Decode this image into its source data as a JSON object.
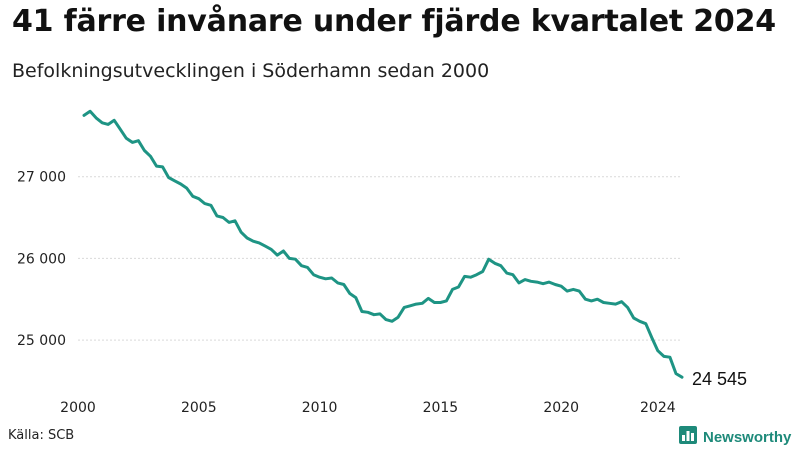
{
  "header": {
    "title": "41 färre invånare under fjärde kvartalet 2024",
    "subtitle": "Befolkningsutvecklingen i Söderhamn sedan 2000"
  },
  "footer": {
    "source": "Källa: SCB",
    "brand": "Newsworthy",
    "brand_icon": "bar-chart-logo-icon"
  },
  "colors": {
    "line": "#1e9484",
    "brand": "#1e8a7a",
    "grid": "#d9d9d9"
  },
  "chart_data": {
    "type": "line",
    "title": "41 färre invånare under fjärde kvartalet 2024",
    "subtitle": "Befolkningsutvecklingen i Söderhamn sedan 2000",
    "xlabel": "",
    "ylabel": "",
    "xlim": [
      2000.0,
      2025.0
    ],
    "ylim": [
      24450,
      28000
    ],
    "x_ticks": [
      2000,
      2005,
      2010,
      2015,
      2020,
      2024
    ],
    "x_tick_labels": [
      "2000",
      "2005",
      "2010",
      "2015",
      "2020",
      "2024"
    ],
    "y_ticks": [
      25000,
      26000,
      27000
    ],
    "y_tick_labels": [
      "25 000",
      "26 000",
      "27 000"
    ],
    "grid": "horizontal",
    "end_label": "24 545",
    "series": [
      {
        "x": [
          2000.25,
          2000.5,
          2000.75,
          2001.0,
          2001.25,
          2001.5,
          2001.75,
          2002.0,
          2002.25,
          2002.5,
          2002.75,
          2003.0,
          2003.25,
          2003.5,
          2003.75,
          2004.0,
          2004.25,
          2004.5,
          2004.75,
          2005.0,
          2005.25,
          2005.5,
          2005.75,
          2006.0,
          2006.25,
          2006.5,
          2006.75,
          2007.0,
          2007.25,
          2007.5,
          2007.75,
          2008.0,
          2008.25,
          2008.5,
          2008.75,
          2009.0,
          2009.25,
          2009.5,
          2009.75,
          2010.0,
          2010.25,
          2010.5,
          2010.75,
          2011.0,
          2011.25,
          2011.5,
          2011.75,
          2012.0,
          2012.25,
          2012.5,
          2012.75,
          2013.0,
          2013.25,
          2013.5,
          2013.75,
          2014.0,
          2014.25,
          2014.5,
          2014.75,
          2015.0,
          2015.25,
          2015.5,
          2015.75,
          2016.0,
          2016.25,
          2016.5,
          2016.75,
          2017.0,
          2017.25,
          2017.5,
          2017.75,
          2018.0,
          2018.25,
          2018.5,
          2018.75,
          2019.0,
          2019.25,
          2019.5,
          2019.75,
          2020.0,
          2020.25,
          2020.5,
          2020.75,
          2021.0,
          2021.25,
          2021.5,
          2021.75,
          2022.0,
          2022.25,
          2022.5,
          2022.75,
          2023.0,
          2023.25,
          2023.5,
          2023.75,
          2024.0,
          2024.25,
          2024.5,
          2024.75,
          2025.0
        ],
        "values": [
          27750,
          27800,
          27720,
          27660,
          27640,
          27690,
          27580,
          27470,
          27420,
          27440,
          27320,
          27250,
          27130,
          27120,
          26990,
          26950,
          26910,
          26860,
          26760,
          26730,
          26670,
          26650,
          26520,
          26500,
          26440,
          26460,
          26320,
          26250,
          26210,
          26190,
          26150,
          26110,
          26040,
          26090,
          26000,
          25990,
          25910,
          25890,
          25800,
          25770,
          25750,
          25760,
          25700,
          25680,
          25570,
          25520,
          25350,
          25340,
          25310,
          25320,
          25250,
          25230,
          25280,
          25400,
          25420,
          25440,
          25450,
          25510,
          25460,
          25460,
          25480,
          25620,
          25650,
          25780,
          25770,
          25800,
          25840,
          25990,
          25940,
          25910,
          25820,
          25800,
          25700,
          25740,
          25720,
          25710,
          25690,
          25710,
          25680,
          25660,
          25600,
          25620,
          25600,
          25500,
          25480,
          25500,
          25460,
          25450,
          25440,
          25470,
          25400,
          25270,
          25230,
          25200,
          25030,
          24870,
          24800,
          24790,
          24590,
          24545
        ]
      }
    ]
  }
}
